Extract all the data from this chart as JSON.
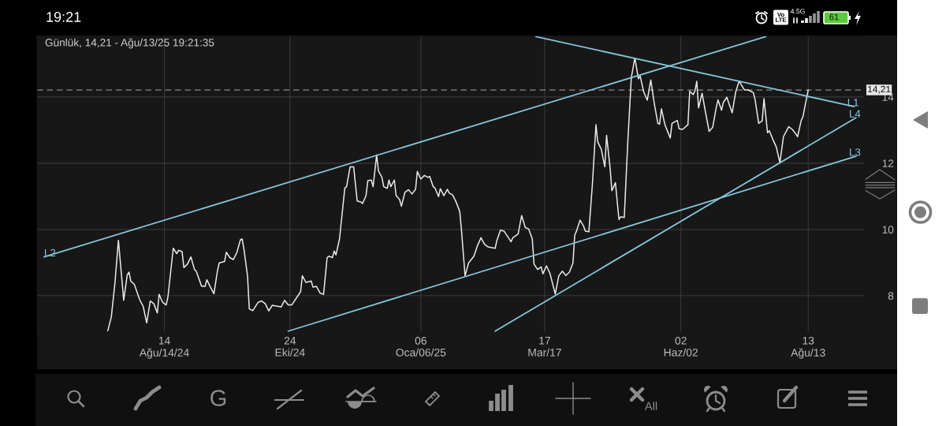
{
  "chart_data": {
    "type": "line",
    "title": "Günlük, 14,21 - Ağu/13/25 19:21:35",
    "x": [
      "2024-07-13",
      "2024-07-15",
      "2024-07-17",
      "2024-07-19",
      "2024-07-22",
      "2024-07-24",
      "2024-07-25",
      "2024-07-26",
      "2024-07-28",
      "2024-07-31",
      "2024-08-02",
      "2024-08-04",
      "2024-08-06",
      "2024-08-08",
      "2024-08-10",
      "2024-08-11",
      "2024-08-13",
      "2024-08-15",
      "2024-08-16",
      "2024-08-19",
      "2024-08-21",
      "2024-08-22",
      "2024-08-24",
      "2024-08-25",
      "2024-08-27",
      "2024-08-29",
      "2024-08-31",
      "2024-09-01",
      "2024-09-04",
      "2024-09-06",
      "2024-09-07",
      "2024-09-09",
      "2024-09-11",
      "2024-09-13",
      "2024-09-14",
      "2024-09-17",
      "2024-09-18",
      "2024-09-20",
      "2024-09-22",
      "2024-09-24",
      "2024-09-26",
      "2024-09-27",
      "2024-09-28",
      "2024-09-30",
      "2024-10-01",
      "2024-10-03",
      "2024-10-06",
      "2024-10-08",
      "2024-10-10",
      "2024-10-12",
      "2024-10-14",
      "2024-10-17",
      "2024-10-19",
      "2024-10-21",
      "2024-10-23",
      "2024-10-25",
      "2024-10-28",
      "2024-10-30",
      "2024-10-31",
      "2024-11-02",
      "2024-11-05",
      "2024-11-06",
      "2024-11-08",
      "2024-11-10",
      "2024-11-12",
      "2024-11-14",
      "2024-11-15",
      "2024-11-17",
      "2024-11-18",
      "2024-11-19",
      "2024-11-21",
      "2024-11-24",
      "2024-11-25",
      "2024-11-27",
      "2024-11-29",
      "2024-12-01",
      "2024-12-03",
      "2024-12-04",
      "2024-12-06",
      "2024-12-07",
      "2024-12-09",
      "2024-12-10",
      "2024-12-12",
      "2024-12-13",
      "2024-12-15",
      "2024-12-16",
      "2024-12-18",
      "2024-12-19",
      "2024-12-20",
      "2024-12-22",
      "2024-12-23",
      "2024-12-25",
      "2024-12-26",
      "2024-12-28",
      "2024-12-30",
      "2025-01-01",
      "2025-01-03",
      "2025-01-04",
      "2025-01-06",
      "2025-01-08",
      "2025-01-10",
      "2025-01-11",
      "2025-01-13",
      "2025-01-14",
      "2025-01-16",
      "2025-01-17",
      "2025-01-19",
      "2025-01-21",
      "2025-01-22",
      "2025-01-24",
      "2025-01-26",
      "2025-01-28",
      "2025-01-29",
      "2025-01-31",
      "2025-02-02",
      "2025-02-05",
      "2025-02-07",
      "2025-02-09",
      "2025-02-11",
      "2025-02-13",
      "2025-02-17",
      "2025-02-18",
      "2025-02-20",
      "2025-02-22",
      "2025-02-24",
      "2025-02-26",
      "2025-02-27",
      "2025-03-02",
      "2025-03-04",
      "2025-03-06",
      "2025-03-08",
      "2025-03-10",
      "2025-03-11",
      "2025-03-13",
      "2025-03-15",
      "2025-03-16",
      "2025-03-18",
      "2025-03-20",
      "2025-03-23",
      "2025-03-25",
      "2025-03-27",
      "2025-03-29",
      "2025-03-31",
      "2025-04-02",
      "2025-04-03",
      "2025-04-04",
      "2025-04-06",
      "2025-04-08",
      "2025-04-09",
      "2025-04-11",
      "2025-04-13",
      "2025-04-15",
      "2025-04-16",
      "2025-04-18",
      "2025-04-20",
      "2025-04-21",
      "2025-04-23",
      "2025-04-24",
      "2025-04-26",
      "2025-04-28",
      "2025-04-29",
      "2025-05-01",
      "2025-05-03",
      "2025-05-05",
      "2025-05-07",
      "2025-05-09",
      "2025-05-10",
      "2025-05-12",
      "2025-05-14",
      "2025-05-16",
      "2025-05-18",
      "2025-05-20",
      "2025-05-21",
      "2025-05-22",
      "2025-05-24",
      "2025-05-27",
      "2025-05-28",
      "2025-05-31",
      "2025-06-01",
      "2025-06-03",
      "2025-06-06",
      "2025-06-07",
      "2025-06-09",
      "2025-06-10",
      "2025-06-11",
      "2025-06-12",
      "2025-06-14",
      "2025-06-16",
      "2025-06-18",
      "2025-06-20",
      "2025-06-22",
      "2025-06-23",
      "2025-06-25",
      "2025-06-26",
      "2025-06-28",
      "2025-06-29",
      "2025-07-01",
      "2025-07-03",
      "2025-07-05",
      "2025-07-07",
      "2025-07-08",
      "2025-07-10",
      "2025-07-13",
      "2025-07-14",
      "2025-07-16",
      "2025-07-18",
      "2025-07-19",
      "2025-07-21",
      "2025-07-22",
      "2025-07-24",
      "2025-07-26",
      "2025-07-28",
      "2025-07-30",
      "2025-08-01",
      "2025-08-02",
      "2025-08-04",
      "2025-08-06",
      "2025-08-07",
      "2025-08-09",
      "2025-08-10",
      "2025-08-13"
    ],
    "series": [
      {
        "color": "#e8e8e8",
        "values": [
          6.94,
          7.36,
          8.36,
          9.67,
          7.86,
          8.63,
          8.71,
          8.44,
          8.34,
          7.88,
          7.68,
          7.18,
          7.84,
          7.76,
          7.48,
          8.04,
          7.8,
          7.72,
          7.96,
          9.43,
          9.27,
          9.37,
          9.33,
          8.85,
          8.95,
          9.17,
          8.79,
          8.74,
          8.29,
          8.28,
          8.48,
          8.26,
          8.06,
          8.75,
          8.99,
          9.03,
          9.31,
          9.15,
          9.09,
          9.31,
          9.69,
          9.71,
          9.39,
          8.6,
          7.6,
          7.55,
          7.8,
          7.84,
          7.76,
          7.54,
          7.71,
          7.68,
          7.66,
          7.86,
          7.72,
          7.72,
          7.96,
          8.12,
          8.6,
          8.4,
          8.44,
          8.26,
          8.28,
          8.08,
          8.04,
          9.15,
          9.19,
          9.15,
          9.35,
          9.23,
          9.71,
          11.25,
          11.29,
          11.89,
          11.89,
          10.86,
          10.83,
          10.78,
          11.02,
          11.47,
          11.49,
          11.29,
          12.25,
          11.77,
          11.57,
          11.29,
          11.24,
          11.49,
          11.29,
          11.49,
          11.02,
          10.9,
          10.7,
          11.12,
          11.2,
          11.07,
          11.21,
          11.75,
          11.52,
          11.63,
          11.57,
          11.6,
          11.29,
          11.25,
          10.99,
          11.23,
          11.02,
          11.21,
          11.1,
          11.04,
          10.82,
          10.54,
          9.95,
          8.6,
          8.99,
          9.19,
          9.51,
          9.75,
          9.55,
          9.47,
          9.43,
          9.67,
          9.98,
          9.95,
          9.79,
          9.63,
          9.75,
          9.86,
          10.42,
          10.06,
          10.01,
          9.71,
          8.95,
          8.79,
          8.87,
          8.66,
          8.9,
          8.67,
          8.05,
          8.6,
          8.74,
          8.61,
          8.71,
          8.99,
          9.83,
          9.95,
          10.28,
          10.1,
          9.95,
          9.93,
          11.37,
          13.16,
          12.64,
          12.42,
          11.89,
          12.84,
          11.85,
          11.17,
          11.41,
          10.3,
          10.38,
          10.36,
          12.64,
          14.59,
          15.17,
          14.55,
          14.63,
          14.15,
          13.9,
          14.51,
          13.79,
          13.2,
          13.18,
          13.64,
          13.16,
          12.76,
          13.2,
          13.29,
          13.04,
          13.02,
          13.16,
          14.17,
          14.07,
          14.19,
          14.47,
          13.67,
          14.11,
          13.52,
          12.96,
          13.08,
          13.67,
          13.91,
          13.6,
          13.83,
          13.99,
          13.83,
          13.52,
          14.15,
          14.48,
          14.29,
          14.21,
          14.21,
          14.13,
          13.91,
          13.2,
          13.28,
          13.95,
          12.92,
          12.98,
          12.72,
          12.48,
          12.01,
          12.8,
          13.0,
          13.1,
          13.02,
          12.88,
          12.8,
          13.28,
          13.4,
          14.21
        ]
      },
      {
        "name": "L1",
        "color": "#86c5da",
        "x": [
          "2025-03-12",
          "2025-09-08"
        ],
        "values": [
          15.82,
          13.71
        ]
      },
      {
        "name": "L2",
        "color": "#86c5da",
        "x": [
          "2024-06-07",
          "2025-07-20"
        ],
        "values": [
          9.17,
          15.82
        ]
      },
      {
        "name": "L3",
        "color": "#86c5da",
        "x": [
          "2024-10-23",
          "2025-09-09"
        ],
        "values": [
          6.93,
          12.21
        ]
      },
      {
        "name": "L4",
        "color": "#86c5da",
        "x": [
          "2025-02-17",
          "2025-09-09"
        ],
        "values": [
          6.93,
          13.37
        ]
      }
    ],
    "xlim": [
      "2024-06-03",
      "2025-09-14"
    ],
    "xticks": [
      {
        "value": "2024-08-14",
        "label": "14\nAğu/14/24"
      },
      {
        "value": "2024-10-24",
        "label": "24\nEki/24"
      },
      {
        "value": "2025-01-06",
        "label": "06\nOca/06/25"
      },
      {
        "value": "2025-03-17",
        "label": "17\nMar/17"
      },
      {
        "value": "2025-06-02",
        "label": "02\nHaz/02"
      },
      {
        "value": "2025-08-13",
        "label": "13\nAğu/13"
      }
    ],
    "ylim": [
      6.9,
      15.83
    ],
    "yticks": [
      8,
      10,
      12,
      14
    ],
    "ref_lines": [
      {
        "axis": "y",
        "value": 14.21,
        "label": "14,21",
        "color": "#8c8c8c",
        "line_style": "dashed"
      }
    ],
    "grid": true,
    "annotations": [
      "19:21",
      "Vo\nLTE",
      "4.5G",
      "61",
      "G",
      "All"
    ]
  }
}
